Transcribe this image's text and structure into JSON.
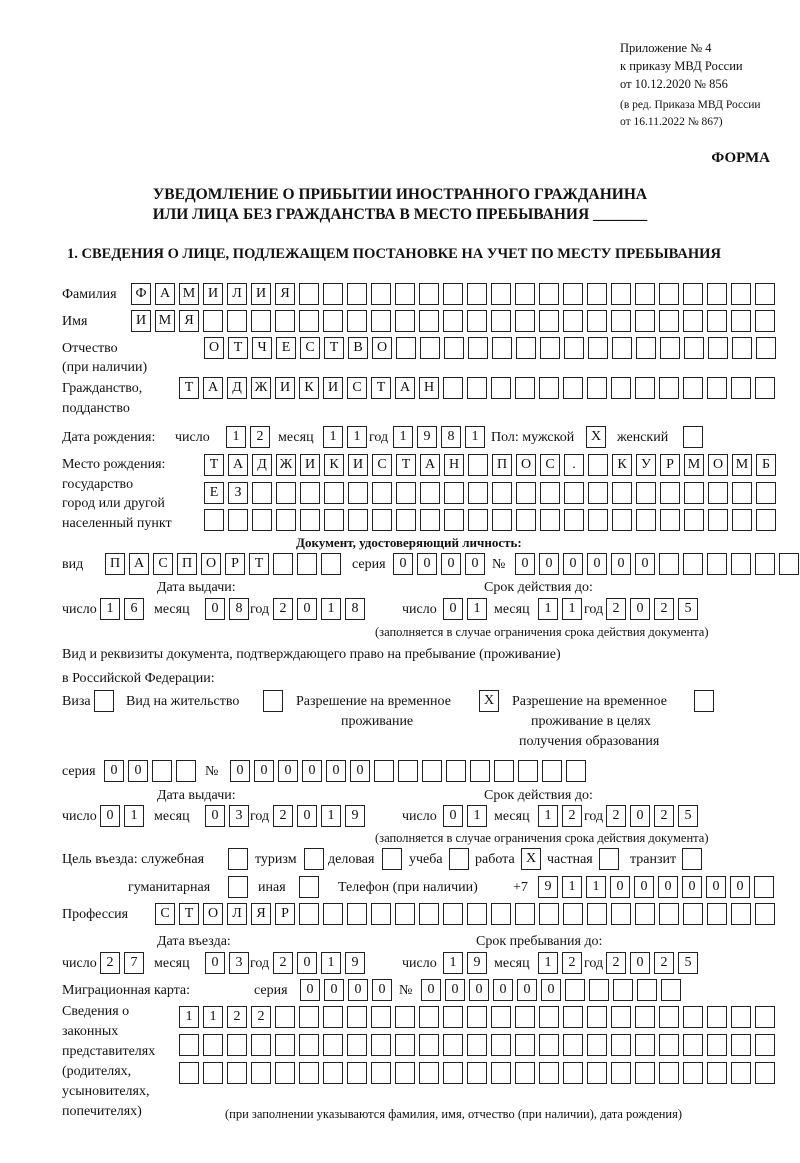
{
  "header": {
    "appendix": "Приложение № 4",
    "order": "к приказу МВД России",
    "order_date": "от 10.12.2020 № 856",
    "revision1": "(в ред. Приказа МВД России",
    "revision2": "от 16.11.2022 № 867)",
    "form": "ФОРМА",
    "title1": "УВЕДОМЛЕНИЕ О ПРИБЫТИИ ИНОСТРАННОГО ГРАЖДАНИНА",
    "title2": "ИЛИ ЛИЦА БЕЗ ГРАЖДАНСТВА В МЕСТО ПРЕБЫВАНИЯ _______",
    "section1": "1. СВЕДЕНИЯ О ЛИЦЕ, ПОДЛЕЖАЩЕМ ПОСТАНОВКЕ НА УЧЕТ ПО МЕСТУ ПРЕБЫВАНИЯ"
  },
  "labels": {
    "surname": "Фамилия",
    "name": "Имя",
    "patronymic": "Отчество",
    "patronymic2": "(при наличии)",
    "citizenship": "Гражданство,",
    "citizenship2": "подданство",
    "birth_date": "Дата рождения:",
    "day": "число",
    "month": "месяц",
    "year": "год",
    "sex": "Пол: мужской",
    "female": "женский",
    "birthplace": "Место рождения:",
    "birthplace2": "государство",
    "birthplace3": "город или другой",
    "birthplace4": "населенный пункт",
    "id_doc": "Документ, удостоверяющий личность:",
    "kind": "вид",
    "series": "серия",
    "number": "№",
    "issue_date": "Дата выдачи:",
    "valid_until": "Срок действия до:",
    "validity_note": "(заполняется в случае ограничения срока действия документа)",
    "right_doc1": "Вид и реквизиты документа, подтверждающего право на пребывание (проживание)",
    "right_doc2": "в Российской Федерации:",
    "visa": "Виза",
    "residence_permit": "Вид на жительство",
    "temp_residence1": "Разрешение на временное",
    "temp_residence2": "проживание",
    "temp_edu1": "Разрешение на временное",
    "temp_edu2": "проживание в целях",
    "temp_edu3": "получения образования",
    "purpose": "Цель въезда: служебная",
    "tourism": "туризм",
    "business": "деловая",
    "study": "учеба",
    "work": "работа",
    "private": "частная",
    "transit": "транзит",
    "humanitarian": "гуманитарная",
    "other": "иная",
    "phone": "Телефон (при наличии)",
    "phone_prefix": "+7",
    "profession": "Профессия",
    "entry_date": "Дата въезда:",
    "stay_until": "Срок пребывания до:",
    "migration_card": "Миграционная карта:",
    "reps1": "Сведения о",
    "reps2": "законных",
    "reps3": "представителях",
    "reps4": "(родителях,",
    "reps5": "усыновителях,",
    "reps6": "попечителях)",
    "reps_note": "(при заполнении указываются фамилия, имя, отчество (при наличии), дата рождения)"
  },
  "fields": {
    "surname": [
      "Ф",
      "А",
      "М",
      "И",
      "Л",
      "И",
      "Я",
      "",
      "",
      "",
      "",
      "",
      "",
      "",
      "",
      "",
      "",
      "",
      "",
      "",
      "",
      "",
      "",
      "",
      "",
      "",
      ""
    ],
    "name": [
      "И",
      "М",
      "Я",
      "",
      "",
      "",
      "",
      "",
      "",
      "",
      "",
      "",
      "",
      "",
      "",
      "",
      "",
      "",
      "",
      "",
      "",
      "",
      "",
      "",
      "",
      "",
      ""
    ],
    "patronymic": [
      "О",
      "Т",
      "Ч",
      "Е",
      "С",
      "Т",
      "В",
      "О",
      "",
      "",
      "",
      "",
      "",
      "",
      "",
      "",
      "",
      "",
      "",
      "",
      "",
      "",
      "",
      ""
    ],
    "citizenship": [
      "Т",
      "А",
      "Д",
      "Ж",
      "И",
      "К",
      "И",
      "С",
      "Т",
      "А",
      "Н",
      "",
      "",
      "",
      "",
      "",
      "",
      "",
      "",
      "",
      "",
      "",
      "",
      "",
      ""
    ],
    "birth_day": [
      "1",
      "2"
    ],
    "birth_month": [
      "1",
      "1"
    ],
    "birth_year": [
      "1",
      "9",
      "8",
      "1"
    ],
    "sex_male": [
      "X"
    ],
    "sex_female": [
      ""
    ],
    "birthplace1": [
      "Т",
      "А",
      "Д",
      "Ж",
      "И",
      "К",
      "И",
      "С",
      "Т",
      "А",
      "Н",
      "",
      "П",
      "О",
      "С",
      ".",
      "",
      "К",
      "У",
      "Р",
      "М",
      "О",
      "М",
      "Б"
    ],
    "birthplace2": [
      "Е",
      "З",
      "",
      "",
      "",
      "",
      "",
      "",
      "",
      "",
      "",
      "",
      "",
      "",
      "",
      "",
      "",
      "",
      "",
      "",
      "",
      "",
      "",
      ""
    ],
    "birthplace3": [
      "",
      "",
      "",
      "",
      "",
      "",
      "",
      "",
      "",
      "",
      "",
      "",
      "",
      "",
      "",
      "",
      "",
      "",
      "",
      "",
      "",
      "",
      "",
      ""
    ],
    "doc_kind": [
      "П",
      "А",
      "С",
      "П",
      "О",
      "Р",
      "Т",
      "",
      "",
      ""
    ],
    "doc_series": [
      "0",
      "0",
      "0",
      "0"
    ],
    "doc_number": [
      "0",
      "0",
      "0",
      "0",
      "0",
      "0",
      "",
      "",
      "",
      "",
      "",
      "",
      ""
    ],
    "doc_issue_day": [
      "1",
      "6"
    ],
    "doc_issue_month": [
      "0",
      "8"
    ],
    "doc_issue_year": [
      "2",
      "0",
      "1",
      "8"
    ],
    "doc_valid_day": [
      "0",
      "1"
    ],
    "doc_valid_month": [
      "1",
      "1"
    ],
    "doc_valid_year": [
      "2",
      "0",
      "2",
      "5"
    ],
    "right_visa": [
      ""
    ],
    "right_residence": [
      ""
    ],
    "right_temp": [
      "X"
    ],
    "right_temp_edu": [
      ""
    ],
    "right_series": [
      "0",
      "0",
      "",
      ""
    ],
    "right_number": [
      "0",
      "0",
      "0",
      "0",
      "0",
      "0",
      "",
      "",
      "",
      "",
      "",
      "",
      "",
      "",
      ""
    ],
    "right_issue_day": [
      "0",
      "1"
    ],
    "right_issue_month": [
      "0",
      "3"
    ],
    "right_issue_year": [
      "2",
      "0",
      "1",
      "9"
    ],
    "right_valid_day": [
      "0",
      "1"
    ],
    "right_valid_month": [
      "1",
      "2"
    ],
    "right_valid_year": [
      "2",
      "0",
      "2",
      "5"
    ],
    "purpose_official": [
      ""
    ],
    "purpose_tourism": [
      ""
    ],
    "purpose_business": [
      ""
    ],
    "purpose_study": [
      ""
    ],
    "purpose_work": [
      "X"
    ],
    "purpose_private": [
      ""
    ],
    "purpose_transit": [
      ""
    ],
    "purpose_humanitarian": [
      ""
    ],
    "purpose_other": [
      ""
    ],
    "phone": [
      "9",
      "1",
      "1",
      "0",
      "0",
      "0",
      "0",
      "0",
      "0",
      ""
    ],
    "profession": [
      "С",
      "Т",
      "О",
      "Л",
      "Я",
      "Р",
      "",
      "",
      "",
      "",
      "",
      "",
      "",
      "",
      "",
      "",
      "",
      "",
      "",
      "",
      "",
      "",
      "",
      "",
      "",
      ""
    ],
    "entry_day": [
      "2",
      "7"
    ],
    "entry_month": [
      "0",
      "3"
    ],
    "entry_year": [
      "2",
      "0",
      "1",
      "9"
    ],
    "stay_day": [
      "1",
      "9"
    ],
    "stay_month": [
      "1",
      "2"
    ],
    "stay_year": [
      "2",
      "0",
      "2",
      "5"
    ],
    "mc_series": [
      "0",
      "0",
      "0",
      "0"
    ],
    "mc_number": [
      "0",
      "0",
      "0",
      "0",
      "0",
      "0",
      "",
      "",
      "",
      "",
      ""
    ],
    "reps1": [
      "1",
      "1",
      "2",
      "2",
      "",
      "",
      "",
      "",
      "",
      "",
      "",
      "",
      "",
      "",
      "",
      "",
      "",
      "",
      "",
      "",
      "",
      "",
      "",
      "",
      ""
    ],
    "reps2": [
      "",
      "",
      "",
      "",
      "",
      "",
      "",
      "",
      "",
      "",
      "",
      "",
      "",
      "",
      "",
      "",
      "",
      "",
      "",
      "",
      "",
      "",
      "",
      "",
      ""
    ],
    "reps3": [
      "",
      "",
      "",
      "",
      "",
      "",
      "",
      "",
      "",
      "",
      "",
      "",
      "",
      "",
      "",
      "",
      "",
      "",
      "",
      "",
      "",
      "",
      "",
      "",
      ""
    ]
  }
}
